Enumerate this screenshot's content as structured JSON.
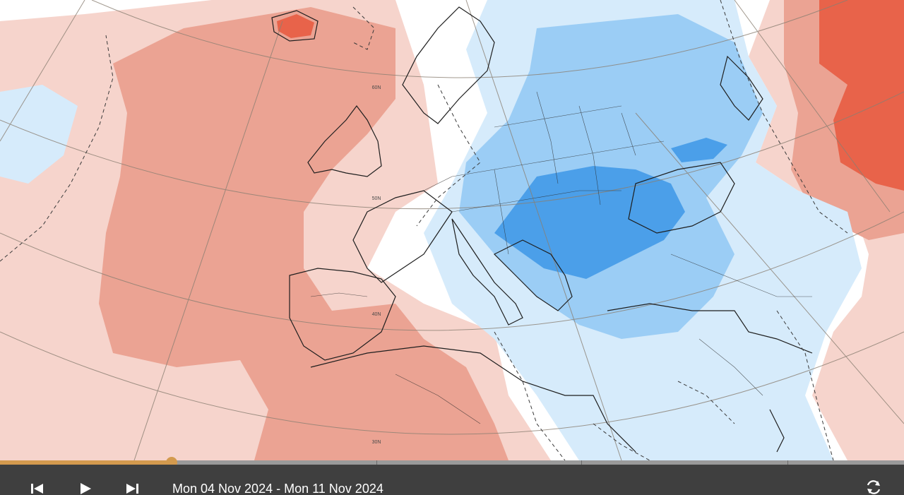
{
  "map": {
    "latitude_labels": [
      "60N",
      "50N",
      "40N",
      "30N"
    ]
  },
  "timeline": {
    "progress": 0.19
  },
  "controls": {
    "first_icon": "skip-to-start-icon",
    "play_icon": "play-icon",
    "last_icon": "skip-to-end-icon",
    "refresh_icon": "refresh-icon",
    "date_range": "Mon 04 Nov 2024 - Mon 11 Nov 2024"
  },
  "colors": {
    "warm_strong": "#e8634a",
    "warm": "#eba393",
    "warm_light": "#f6d4cc",
    "cold_strong": "#4b9fe9",
    "cold": "#9bcdf5",
    "cold_light": "#d6ebfb",
    "timeline_progress": "#d39a4e",
    "control_bar": "#3f3f3f"
  }
}
